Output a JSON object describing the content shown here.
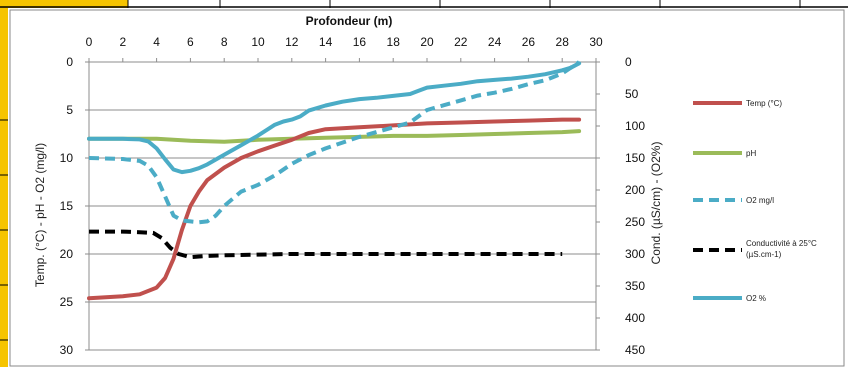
{
  "chart_data": {
    "type": "line",
    "title": "Profondeur (m)",
    "xlabel": "Profondeur (m)",
    "ylabel_left": "Temp. (°C) - pH - O2 (mg/l)",
    "ylabel_right": "Cond. (µS/cm) - (O2%)",
    "x_ticks": [
      "0",
      "2",
      "4",
      "6",
      "8",
      "10",
      "12",
      "14",
      "16",
      "18",
      "20",
      "22",
      "24",
      "26",
      "28",
      "30"
    ],
    "y_left_ticks": [
      "0",
      "5",
      "10",
      "15",
      "20",
      "25",
      "30"
    ],
    "y_right_ticks": [
      "0",
      "50",
      "100",
      "150",
      "200",
      "250",
      "300",
      "350",
      "400",
      "450"
    ],
    "xlim": [
      0,
      30
    ],
    "ylim_left": [
      0,
      30
    ],
    "ylim_right": [
      0,
      450
    ],
    "y_inverted": true,
    "grid": "horizontal",
    "legend_position": "right",
    "series": [
      {
        "name": "Temp (°C)",
        "axis": "left",
        "color": "#c0504d",
        "style": "solid",
        "x": [
          0,
          2,
          3,
          4,
          4.5,
          5,
          5.5,
          6,
          6.5,
          7,
          8,
          9,
          10,
          11,
          12,
          13,
          14,
          16,
          18,
          20,
          22,
          24,
          26,
          28,
          29
        ],
        "y": [
          24.6,
          24.4,
          24.2,
          23.5,
          22.5,
          20.5,
          17.5,
          15,
          13.5,
          12.3,
          11,
          10,
          9.3,
          8.7,
          8.1,
          7.4,
          7,
          6.8,
          6.6,
          6.4,
          6.3,
          6.2,
          6.1,
          6,
          6
        ]
      },
      {
        "name": "pH",
        "axis": "left",
        "color": "#9bbb59",
        "style": "solid",
        "x": [
          0,
          2,
          4,
          6,
          8,
          10,
          12,
          14,
          16,
          18,
          20,
          22,
          24,
          26,
          28,
          29
        ],
        "y": [
          8,
          8,
          8,
          8.2,
          8.3,
          8.1,
          8,
          7.9,
          7.8,
          7.7,
          7.7,
          7.6,
          7.5,
          7.4,
          7.3,
          7.2
        ]
      },
      {
        "name": "O2  mg/l",
        "axis": "left",
        "color": "#4bacc6",
        "style": "dashed",
        "x": [
          0,
          2,
          3,
          3.5,
          4,
          4.5,
          5,
          5.5,
          6,
          6.5,
          7,
          7.5,
          8,
          9,
          10,
          11,
          12,
          13,
          14,
          15,
          16,
          17,
          18,
          19,
          20,
          21,
          22,
          23,
          24,
          25,
          26,
          27,
          28,
          28.5,
          29
        ],
        "y": [
          10,
          10.1,
          10.3,
          10.8,
          12,
          14,
          16,
          16.5,
          16.6,
          16.7,
          16.6,
          16,
          15,
          13.5,
          12.8,
          11.8,
          10.6,
          9.7,
          9,
          8.4,
          7.8,
          7.3,
          6.8,
          6.3,
          5,
          4.5,
          4,
          3.5,
          3.2,
          2.8,
          2.3,
          1.9,
          1.2,
          0.6,
          0
        ]
      },
      {
        "name": "Conductivité à 25°C (µS.cm-1)",
        "axis": "right",
        "color": "#000000",
        "style": "dashed",
        "x": [
          0,
          2,
          3,
          3.8,
          4.3,
          4.8,
          5.3,
          6,
          7,
          8,
          10,
          12,
          14,
          16,
          18,
          20,
          22,
          24,
          26,
          28
        ],
        "y": [
          265,
          265,
          266,
          267,
          275,
          290,
          300,
          305,
          303,
          302,
          301,
          300,
          300,
          300,
          300,
          300,
          300,
          300,
          300,
          300
        ]
      },
      {
        "name": "O2 %",
        "axis": "right",
        "color": "#4bacc6",
        "style": "solid",
        "x": [
          0,
          2,
          3,
          3.5,
          4,
          4.5,
          5,
          5.5,
          6,
          6.5,
          7,
          8,
          9,
          10,
          11,
          11.5,
          12,
          12.5,
          13,
          14,
          15,
          16,
          17,
          18,
          19,
          19.5,
          20,
          21,
          22,
          23,
          24,
          25,
          26,
          27,
          28,
          28.5,
          29
        ],
        "y": [
          120,
          120,
          121,
          124,
          135,
          152,
          168,
          172,
          170,
          166,
          160,
          145,
          130,
          115,
          98,
          93,
          90,
          85,
          76,
          68,
          62,
          58,
          56,
          53,
          50,
          45,
          40,
          37,
          34,
          30,
          28,
          26,
          23,
          19,
          13,
          9,
          2
        ]
      }
    ]
  }
}
